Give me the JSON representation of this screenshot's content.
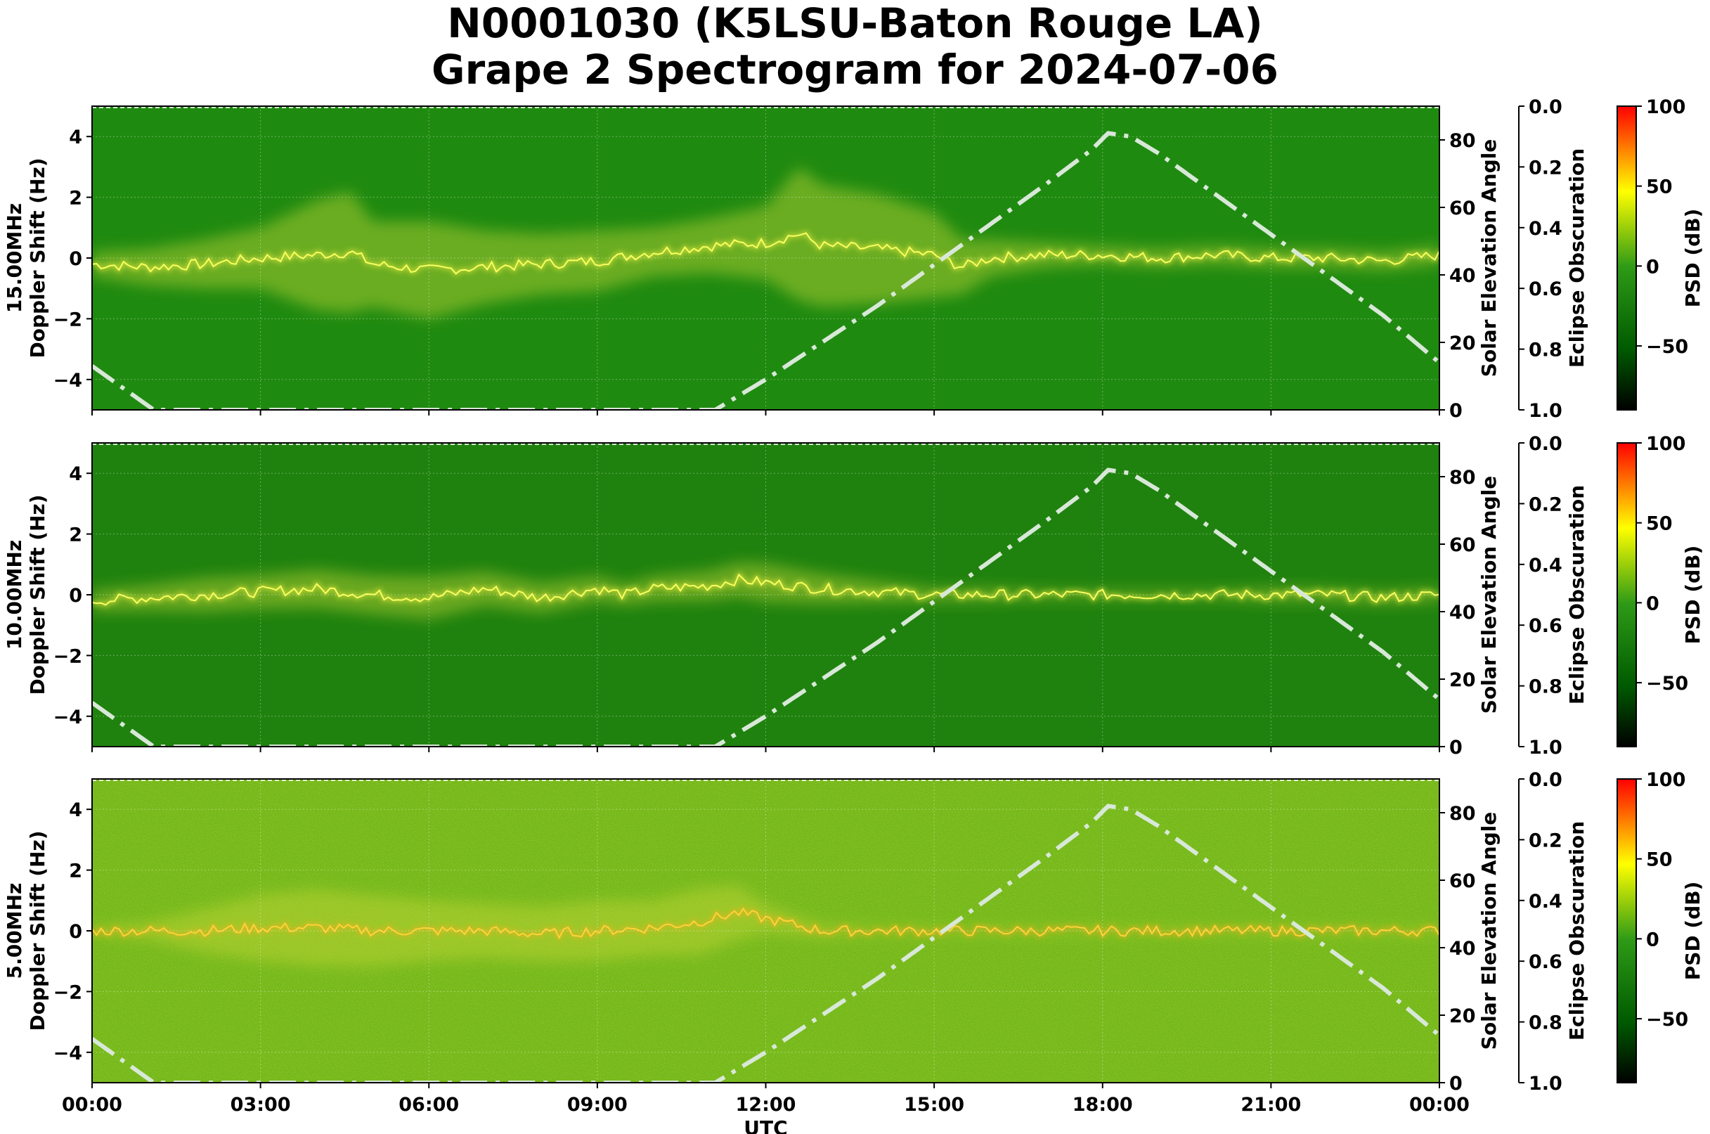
{
  "title": {
    "line1": "N0001030 (K5LSU-Baton Rouge LA)",
    "line2": "Grape 2 Spectrogram for 2024-07-06"
  },
  "x_axis": {
    "label": "UTC",
    "ticks": [
      "00:00",
      "03:00",
      "06:00",
      "09:00",
      "12:00",
      "15:00",
      "18:00",
      "21:00",
      "00:00"
    ]
  },
  "colorbar": {
    "label": "PSD (dB)",
    "ticks": [
      100,
      50,
      0,
      -50
    ],
    "range": [
      -90,
      100
    ],
    "colors": [
      "#000000",
      "#006400",
      "#32cd32",
      "#ffff00",
      "#ff0000"
    ]
  },
  "panels": [
    {
      "frequency_label": "15.00MHz",
      "ylabel": "Doppler Shift (Hz)",
      "y2label": "Solar Elevation Angle",
      "y3label": "Eclipse Obscuration",
      "background_color": "#1f8a10",
      "trace_intensity": 1.0
    },
    {
      "frequency_label": "10.00MHz",
      "ylabel": "Doppler Shift (Hz)",
      "y2label": "Solar Elevation Angle",
      "y3label": "Eclipse Obscuration",
      "background_color": "#1f820e",
      "trace_intensity": 0.7
    },
    {
      "frequency_label": "5.00MHz",
      "ylabel": "Doppler Shift (Hz)",
      "y2label": "Solar Elevation Angle",
      "y3label": "Eclipse Obscuration",
      "background_color": "#74b81a",
      "trace_intensity": 0.9
    }
  ],
  "chart_data": {
    "type": "heatmap",
    "title": "N0001030 (K5LSU-Baton Rouge LA) Grape 2 Spectrogram for 2024-07-06",
    "xlabel": "UTC",
    "xlim_hours": [
      0,
      24
    ],
    "ylabel": "Doppler Shift (Hz)",
    "ylim": [
      -5,
      5
    ],
    "yticks": [
      -4,
      -2,
      0,
      2,
      4
    ],
    "y2label": "Solar Elevation Angle",
    "y2lim": [
      0,
      90
    ],
    "y2ticks": [
      0,
      20,
      40,
      60,
      80
    ],
    "y3label": "Eclipse Obscuration",
    "y3lim": [
      1.0,
      0.0
    ],
    "y3ticks": [
      "0.0",
      "0.2",
      "0.4",
      "0.6",
      "0.8",
      "1.0"
    ],
    "colorbar_label": "PSD (dB)",
    "colorbar_range": [
      -90,
      100
    ],
    "colorbar_ticks": [
      100,
      50,
      0,
      -50
    ],
    "grid": true,
    "solar_elevation": {
      "style": "dash-dot",
      "color": "#d8e8d8",
      "hours": [
        0,
        1.1,
        11.1,
        12,
        13,
        14,
        15,
        16,
        17,
        17.8,
        18.1,
        18.5,
        19,
        20,
        21,
        22,
        23,
        24
      ],
      "degrees": [
        13,
        0,
        0,
        9,
        20,
        31,
        43,
        55,
        67,
        77,
        82,
        81,
        76,
        64,
        52,
        40,
        28,
        14
      ]
    },
    "series": [
      {
        "name": "15.00MHz",
        "hours": [
          0,
          1,
          2,
          3,
          4,
          4.6,
          5,
          6,
          7,
          8,
          9,
          10,
          11,
          12,
          12.6,
          13,
          14,
          15,
          15.5,
          16,
          17,
          18,
          19,
          20,
          21,
          22,
          23,
          24
        ],
        "doppler_hz": [
          -0.2,
          -0.3,
          -0.2,
          0.0,
          0.1,
          0.2,
          -0.2,
          -0.4,
          -0.3,
          -0.2,
          -0.1,
          0.2,
          0.4,
          0.5,
          0.8,
          0.4,
          0.3,
          0.1,
          -0.3,
          0.0,
          0.1,
          0.1,
          0.0,
          0.1,
          0.0,
          0.0,
          -0.1,
          0.1
        ],
        "spread_hz": [
          0.4,
          0.6,
          0.8,
          1.0,
          1.8,
          2.0,
          1.4,
          1.6,
          1.2,
          1.0,
          1.0,
          0.8,
          0.9,
          1.2,
          2.2,
          2.0,
          1.8,
          1.4,
          0.9,
          0.6,
          0.4,
          0.3,
          0.3,
          0.3,
          0.3,
          0.3,
          0.3,
          0.3
        ]
      },
      {
        "name": "10.00MHz",
        "hours": [
          0,
          1,
          2,
          3,
          4,
          5,
          6,
          7,
          8,
          9,
          9.5,
          10,
          11,
          11.5,
          12,
          13,
          14,
          15,
          16,
          17,
          18,
          19,
          20,
          21,
          22,
          23,
          24
        ],
        "doppler_hz": [
          -0.2,
          -0.1,
          0.0,
          0.1,
          0.2,
          0.0,
          -0.1,
          0.2,
          -0.1,
          0.2,
          0.0,
          0.2,
          0.3,
          0.5,
          0.4,
          0.2,
          0.1,
          0.0,
          0.0,
          0.0,
          0.0,
          0.0,
          0.0,
          0.0,
          0.0,
          -0.1,
          0.0
        ],
        "spread_hz": [
          0.5,
          0.6,
          0.8,
          0.8,
          0.9,
          0.9,
          1.0,
          0.8,
          0.7,
          0.6,
          0.5,
          0.6,
          0.7,
          0.8,
          0.9,
          0.7,
          0.5,
          0.3,
          0.3,
          0.2,
          0.2,
          0.2,
          0.2,
          0.3,
          0.3,
          0.3,
          0.3
        ]
      },
      {
        "name": "5.00MHz",
        "hours": [
          0,
          1,
          2,
          3,
          4,
          5,
          6,
          7,
          8,
          9,
          10,
          10.8,
          11.5,
          12,
          13,
          14,
          15,
          16,
          17,
          18,
          19,
          20,
          21,
          22,
          23,
          24
        ],
        "doppler_hz": [
          0.0,
          0.0,
          0.0,
          0.1,
          0.1,
          0.0,
          0.0,
          0.0,
          -0.1,
          0.0,
          0.1,
          0.3,
          0.6,
          0.4,
          0.0,
          0.0,
          0.0,
          0.0,
          0.0,
          0.0,
          0.0,
          0.0,
          0.0,
          0.0,
          0.0,
          0.0
        ],
        "spread_hz": [
          0.1,
          0.3,
          0.8,
          1.2,
          1.4,
          1.3,
          1.1,
          1.0,
          1.0,
          1.1,
          1.0,
          1.2,
          1.0,
          0.5,
          0.2,
          0.1,
          0.1,
          0.1,
          0.1,
          0.1,
          0.1,
          0.1,
          0.1,
          0.1,
          0.1,
          0.1
        ]
      }
    ]
  }
}
